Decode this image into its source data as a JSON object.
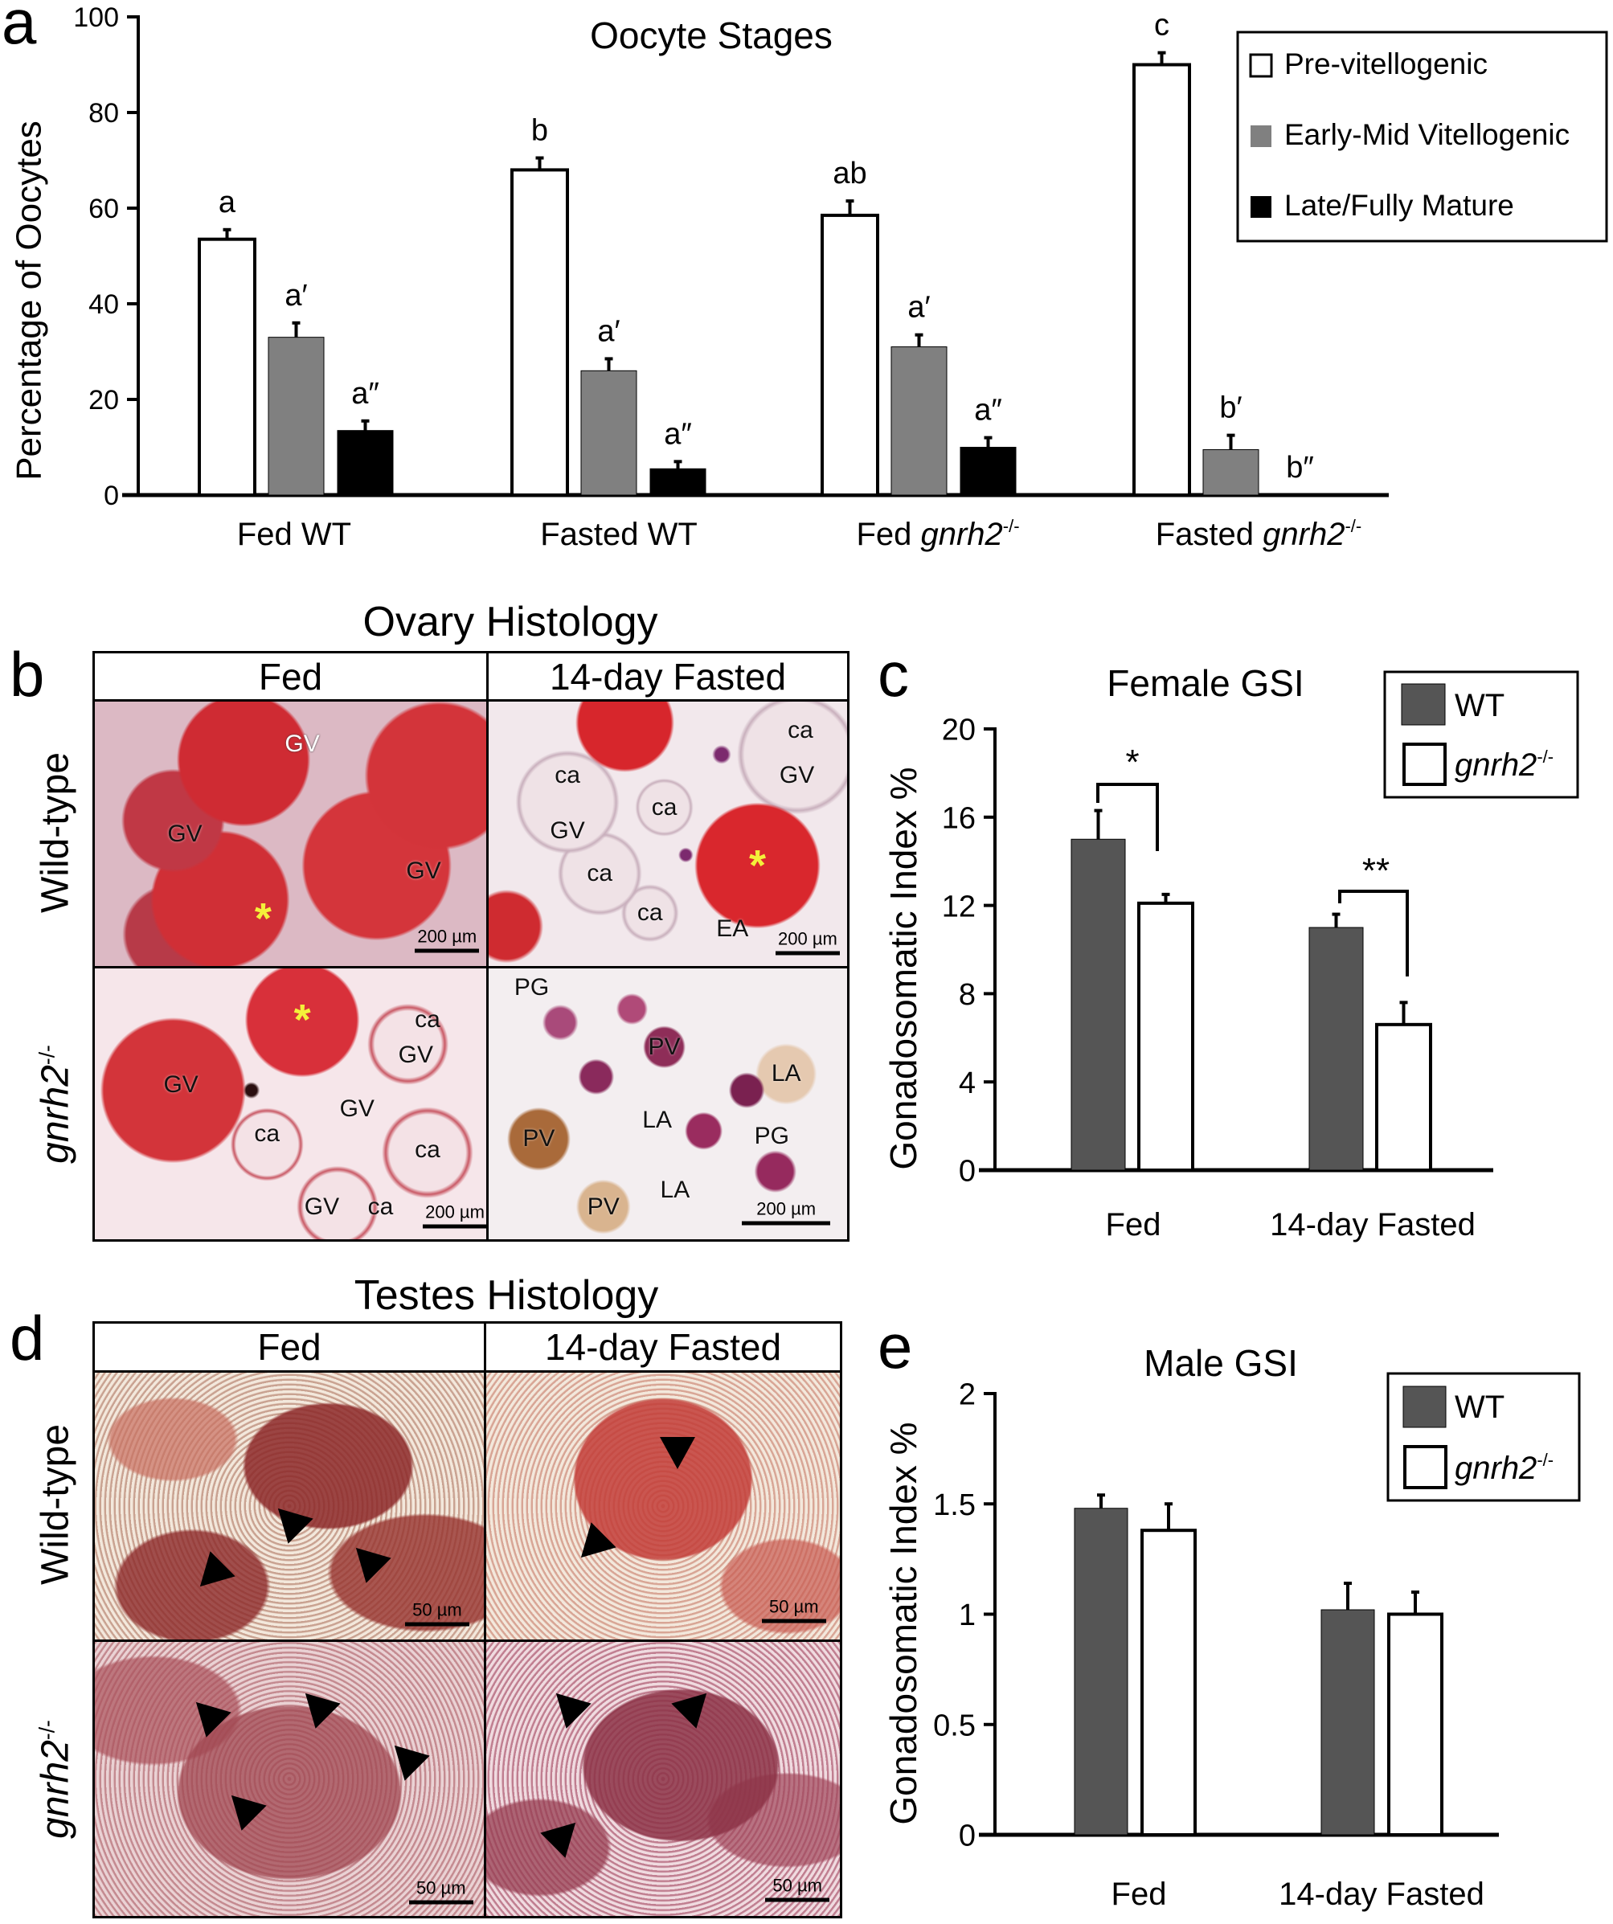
{
  "panels": {
    "a": "a",
    "b": "b",
    "c": "c",
    "d": "d",
    "e": "e"
  },
  "ovary": {
    "title": "Ovary Histology",
    "columns": [
      "Fed",
      "14-day Fasted"
    ],
    "rows": [
      {
        "text": "Wild-type"
      },
      {
        "gene": "gnrh2",
        "sup": "-/-"
      }
    ],
    "cells": {
      "wt_fed": {
        "labels": [
          "GV",
          "GV",
          "GV"
        ],
        "asterisk": "*",
        "scale": "200 µm"
      },
      "wt_fasted": {
        "labels": [
          "ca",
          "GV",
          "ca",
          "ca",
          "GV",
          "ca",
          "ca",
          "EA"
        ],
        "asterisk": "*",
        "scale": "200 µm"
      },
      "ko_fed": {
        "labels": [
          "ca",
          "GV",
          "GV",
          "GV",
          "ca",
          "ca",
          "GV",
          "ca"
        ],
        "asterisk": "*",
        "scale": "200 µm"
      },
      "ko_fasted": {
        "labels": [
          "PG",
          "PV",
          "LA",
          "PV",
          "LA",
          "PG",
          "PV",
          "LA"
        ],
        "scale": "200 µm"
      }
    }
  },
  "testes": {
    "title": "Testes Histology",
    "columns": [
      "Fed",
      "14-day Fasted"
    ],
    "rows": [
      {
        "text": "Wild-type"
      },
      {
        "gene": "gnrh2",
        "sup": "-/-"
      }
    ],
    "scale": "50 µm"
  },
  "chart_data": [
    {
      "panel": "a",
      "type": "bar",
      "title": "Oocyte Stages",
      "ylabel": "Percentage of Oocytes",
      "xlabel": "",
      "ylim": [
        0,
        100
      ],
      "yticks": [
        0,
        20,
        40,
        60,
        80,
        100
      ],
      "grid": false,
      "legend": "top-right",
      "categories": [
        {
          "text": "Fed WT"
        },
        {
          "text": "Fasted WT"
        },
        {
          "text": "Fed",
          "gene": "gnrh2",
          "sup": "-/-"
        },
        {
          "text": "Fasted",
          "gene": "gnrh2",
          "sup": "-/-"
        }
      ],
      "series": [
        {
          "name": "Pre-vitellogenic",
          "color": "#ffffff",
          "values": [
            53.5,
            68,
            58.5,
            90
          ],
          "errors": [
            2,
            2.5,
            3,
            2.5
          ],
          "letters": [
            "a",
            "b",
            "ab",
            "c"
          ]
        },
        {
          "name": "Early-Mid Vitellogenic",
          "color": "#808080",
          "values": [
            33,
            26,
            31,
            9.5
          ],
          "errors": [
            3,
            2.5,
            2.5,
            3
          ],
          "letters": [
            "a′",
            "a′",
            "a′",
            "b′"
          ]
        },
        {
          "name": "Late/Fully Mature",
          "color": "#000000",
          "values": [
            13.5,
            5.5,
            10,
            0
          ],
          "errors": [
            2,
            1.5,
            2,
            0
          ],
          "letters": [
            "a″",
            "a″",
            "a″",
            "b″"
          ]
        }
      ]
    },
    {
      "panel": "c",
      "type": "bar",
      "title": "Female GSI",
      "ylabel": "Gonadosomatic Index %",
      "xlabel": "",
      "ylim": [
        0,
        20
      ],
      "yticks": [
        0,
        4,
        8,
        12,
        16,
        20
      ],
      "grid": false,
      "legend": "top-right",
      "categories": [
        {
          "text": "Fed"
        },
        {
          "text": "14-day Fasted"
        }
      ],
      "series": [
        {
          "name": "WT",
          "color": "#555555",
          "values": [
            15,
            11
          ],
          "errors": [
            1.3,
            0.6
          ]
        },
        {
          "name": "gnrh2",
          "sup": "-/-",
          "italic": true,
          "color": "#ffffff",
          "values": [
            12.1,
            6.6
          ],
          "errors": [
            0.4,
            1.0
          ]
        }
      ],
      "significance": [
        "*",
        "**"
      ]
    },
    {
      "panel": "e",
      "type": "bar",
      "title": "Male GSI",
      "ylabel": "Gonadosomatic Index %",
      "xlabel": "",
      "ylim": [
        0,
        2
      ],
      "yticks": [
        0,
        0.5,
        1,
        1.5,
        2
      ],
      "grid": false,
      "legend": "top-right",
      "categories": [
        {
          "text": "Fed"
        },
        {
          "text": "14-day Fasted"
        }
      ],
      "series": [
        {
          "name": "WT",
          "color": "#555555",
          "values": [
            1.48,
            1.02
          ],
          "errors": [
            0.06,
            0.12
          ]
        },
        {
          "name": "gnrh2",
          "sup": "-/-",
          "italic": true,
          "color": "#ffffff",
          "values": [
            1.38,
            1.0
          ],
          "errors": [
            0.12,
            0.1
          ]
        }
      ]
    }
  ]
}
